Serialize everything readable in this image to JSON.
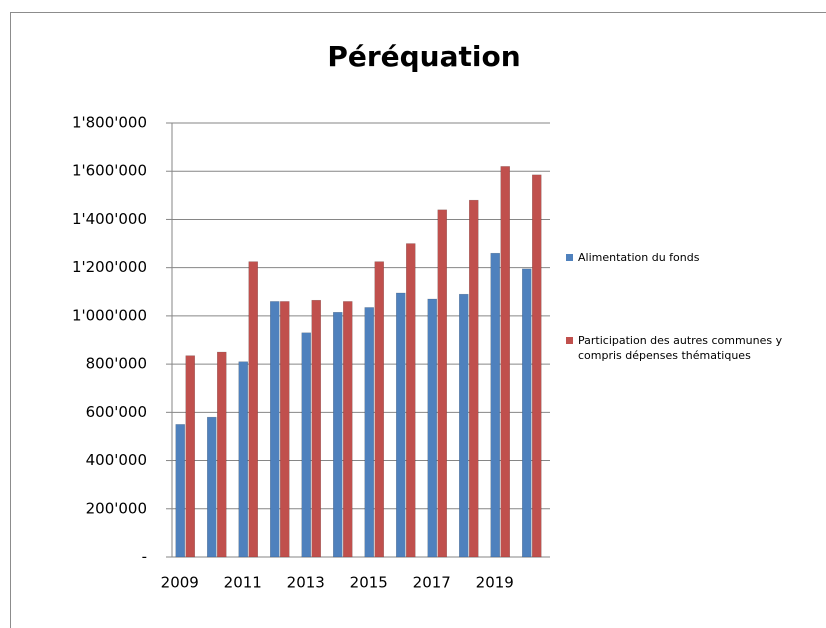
{
  "chart_data": {
    "type": "bar",
    "title": "Péréquation",
    "categories": [
      "2009",
      null,
      "2011",
      null,
      "2013",
      null,
      "2015",
      null,
      "2017",
      null,
      "2019",
      null
    ],
    "series": [
      {
        "name": "Alimentation du fonds",
        "color": "#4f81bd",
        "values": [
          550000,
          580000,
          810000,
          1060000,
          930000,
          1015000,
          1035000,
          1095000,
          1070000,
          1090000,
          1260000,
          1195000
        ]
      },
      {
        "name": "Participation des autres communes y compris dépenses thématiques",
        "color": "#c0504d",
        "values": [
          835000,
          850000,
          1225000,
          1060000,
          1065000,
          1060000,
          1225000,
          1300000,
          1440000,
          1480000,
          1620000,
          1585000
        ]
      }
    ],
    "ylim": [
      0,
      1800000
    ],
    "yticks": [
      {
        "value": 0,
        "label": "-"
      },
      {
        "value": 200000,
        "label": "200'000"
      },
      {
        "value": 400000,
        "label": "400'000"
      },
      {
        "value": 600000,
        "label": "600'000"
      },
      {
        "value": 800000,
        "label": "800'000"
      },
      {
        "value": 1000000,
        "label": "1'000'000"
      },
      {
        "value": 1200000,
        "label": "1'200'000"
      },
      {
        "value": 1400000,
        "label": "1'400'000"
      },
      {
        "value": 1600000,
        "label": "1'600'000"
      },
      {
        "value": 1800000,
        "label": "1'800'000"
      }
    ],
    "grid": true,
    "legend": "right"
  }
}
